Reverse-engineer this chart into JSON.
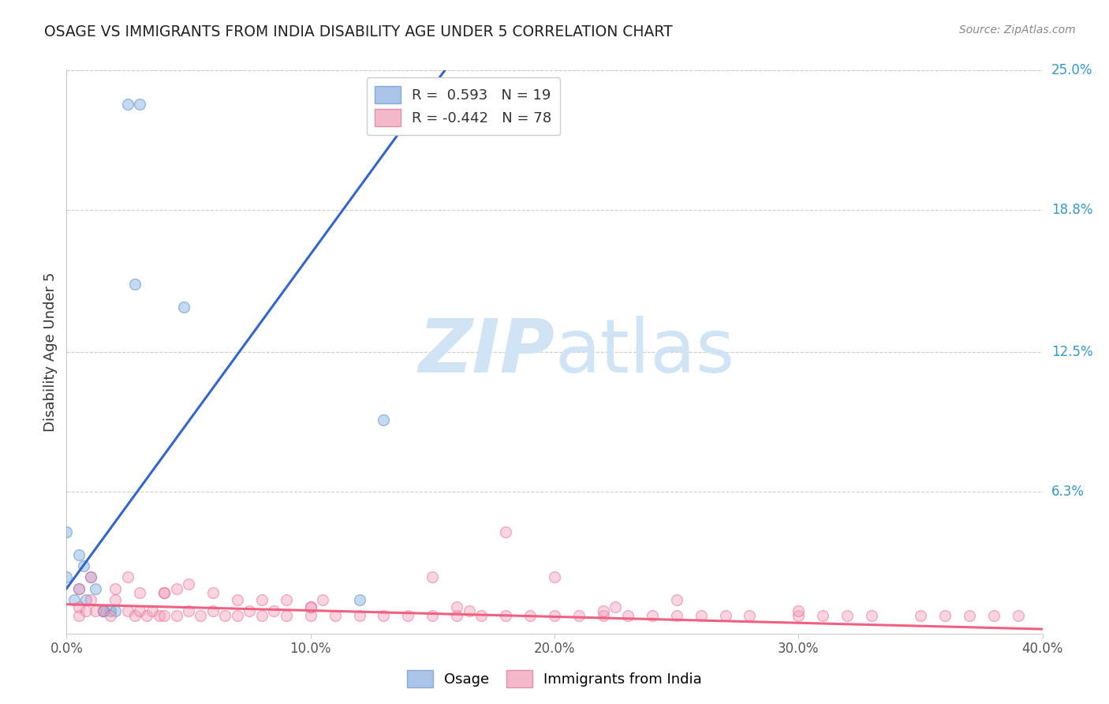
{
  "title": "OSAGE VS IMMIGRANTS FROM INDIA DISABILITY AGE UNDER 5 CORRELATION CHART",
  "source": "Source: ZipAtlas.com",
  "ylabel": "Disability Age Under 5",
  "xlim": [
    0.0,
    0.4
  ],
  "ylim": [
    0.0,
    0.25
  ],
  "xtick_values": [
    0.0,
    0.1,
    0.2,
    0.3,
    0.4
  ],
  "ytick_right_vals": [
    0.25,
    0.188,
    0.125,
    0.063
  ],
  "ytick_right_labels": [
    "25.0%",
    "18.8%",
    "12.5%",
    "6.3%"
  ],
  "grid_color": "#cccccc",
  "background_color": "#ffffff",
  "watermark_zip": "ZIP",
  "watermark_atlas": "atlas",
  "watermark_color": "#d0e4f5",
  "legend_color1": "#aac4e8",
  "legend_color2": "#f4b8c8",
  "legend_edge1": "#88aad4",
  "legend_edge2": "#e090a8",
  "osage_color": "#7aade0",
  "india_color": "#f4a0bc",
  "osage_edge_color": "#4477bb",
  "india_edge_color": "#e06080",
  "osage_line_color": "#3366cc",
  "india_line_color": "#f06080",
  "osage_scatter_x": [
    0.025,
    0.03,
    0.028,
    0.048,
    0.0,
    0.005,
    0.01,
    0.012,
    0.008,
    0.015,
    0.018,
    0.02,
    0.13,
    0.0,
    0.005,
    0.003,
    0.015,
    0.12,
    0.007
  ],
  "osage_scatter_y": [
    0.235,
    0.235,
    0.155,
    0.145,
    0.045,
    0.035,
    0.025,
    0.02,
    0.015,
    0.01,
    0.01,
    0.01,
    0.095,
    0.025,
    0.02,
    0.015,
    0.01,
    0.015,
    0.03
  ],
  "india_scatter_x": [
    0.005,
    0.005,
    0.008,
    0.01,
    0.012,
    0.015,
    0.018,
    0.02,
    0.025,
    0.028,
    0.03,
    0.033,
    0.035,
    0.038,
    0.04,
    0.045,
    0.05,
    0.055,
    0.06,
    0.065,
    0.07,
    0.075,
    0.08,
    0.085,
    0.09,
    0.1,
    0.11,
    0.12,
    0.13,
    0.14,
    0.15,
    0.16,
    0.17,
    0.18,
    0.19,
    0.2,
    0.21,
    0.22,
    0.23,
    0.24,
    0.25,
    0.26,
    0.27,
    0.28,
    0.3,
    0.31,
    0.32,
    0.33,
    0.35,
    0.36,
    0.37,
    0.38,
    0.39,
    0.005,
    0.01,
    0.02,
    0.025,
    0.03,
    0.04,
    0.05,
    0.06,
    0.07,
    0.08,
    0.09,
    0.1,
    0.15,
    0.2,
    0.25,
    0.3,
    0.18,
    0.04,
    0.045,
    0.1,
    0.105,
    0.16,
    0.165,
    0.22,
    0.225
  ],
  "india_scatter_y": [
    0.008,
    0.012,
    0.01,
    0.015,
    0.01,
    0.01,
    0.008,
    0.015,
    0.01,
    0.008,
    0.01,
    0.008,
    0.01,
    0.008,
    0.008,
    0.008,
    0.01,
    0.008,
    0.01,
    0.008,
    0.008,
    0.01,
    0.008,
    0.01,
    0.008,
    0.008,
    0.008,
    0.008,
    0.008,
    0.008,
    0.008,
    0.008,
    0.008,
    0.008,
    0.008,
    0.008,
    0.008,
    0.008,
    0.008,
    0.008,
    0.008,
    0.008,
    0.008,
    0.008,
    0.008,
    0.008,
    0.008,
    0.008,
    0.008,
    0.008,
    0.008,
    0.008,
    0.008,
    0.02,
    0.025,
    0.02,
    0.025,
    0.018,
    0.018,
    0.022,
    0.018,
    0.015,
    0.015,
    0.015,
    0.012,
    0.025,
    0.025,
    0.015,
    0.01,
    0.045,
    0.018,
    0.02,
    0.012,
    0.015,
    0.012,
    0.01,
    0.01,
    0.012
  ],
  "osage_line_x": [
    0.0,
    0.155
  ],
  "osage_line_y": [
    0.02,
    0.25
  ],
  "india_line_x": [
    0.0,
    0.4
  ],
  "india_line_y": [
    0.013,
    0.002
  ],
  "marker_size": 100,
  "marker_alpha": 0.45,
  "marker_lw": 1.0
}
